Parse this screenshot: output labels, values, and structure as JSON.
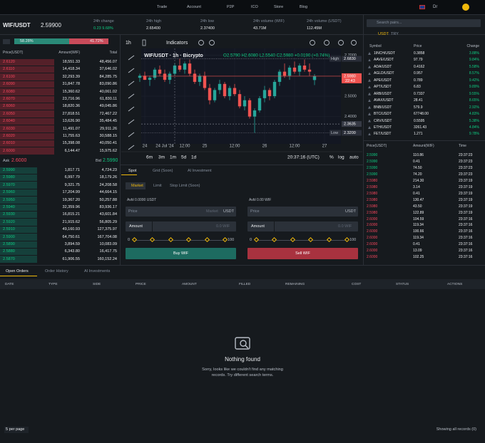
{
  "nav": {
    "items": [
      "Trade",
      "Account",
      "P2P",
      "ICO",
      "Store",
      "Blog"
    ],
    "user": "Dr"
  },
  "ticker": {
    "pair": "WIF/USDT",
    "price": "2.59900",
    "stats": [
      {
        "label": "24h change",
        "value": "0.23 9.68%"
      },
      {
        "label": "24h high",
        "value": "2.65400"
      },
      {
        "label": "24h low",
        "value": "2.37400"
      },
      {
        "label": "24h volume (WIF)",
        "value": "43.71M"
      },
      {
        "label": "24h volume (USDT)",
        "value": "112.45M"
      }
    ]
  },
  "orderbook": {
    "buy_ratio": {
      "value": 58.28,
      "label": "58.28%"
    },
    "sell_ratio": {
      "value": 41.72,
      "label": "41.72%"
    },
    "headers": [
      "Price(USDT)",
      "Amount(WIF)",
      "Total"
    ],
    "asks": [
      [
        "2.6120",
        "18,551.33",
        "48,456.07"
      ],
      [
        "2.6110",
        "14,418.34",
        "37,646.02"
      ],
      [
        "2.6100",
        "32,293.39",
        "84,285.75"
      ],
      [
        "2.6090",
        "31,847.78",
        "83,090.86"
      ],
      [
        "2.6080",
        "15,360.62",
        "40,061.02"
      ],
      [
        "2.6070",
        "23,716.96",
        "61,830.11"
      ],
      [
        "2.6060",
        "18,820.36",
        "49,045.86"
      ],
      [
        "2.6050",
        "27,818.51",
        "72,467.22"
      ],
      [
        "2.6040",
        "13,626.90",
        "35,484.45"
      ],
      [
        "2.6030",
        "11,491.07",
        "29,911.26"
      ],
      [
        "2.6020",
        "11,755.63",
        "30,588.15"
      ],
      [
        "2.6010",
        "15,398.08",
        "40,050.41"
      ],
      [
        "2.6000",
        "6,144.47",
        "15,975.62"
      ]
    ],
    "ask_label": "Ask",
    "ask": "2.6000",
    "bid_label": "Bid",
    "bid": "2.5990",
    "bids": [
      [
        "2.5990",
        "1,817.71",
        "4,724.23"
      ],
      [
        "2.5980",
        "6,997.79",
        "18,179.26"
      ],
      [
        "2.5970",
        "9,321.75",
        "24,208.58"
      ],
      [
        "2.5960",
        "17,204.99",
        "44,664.15"
      ],
      [
        "2.5950",
        "19,367.20",
        "50,257.88"
      ],
      [
        "2.5940",
        "32,359.96",
        "83,936.17"
      ],
      [
        "2.5930",
        "16,815.21",
        "43,601.84"
      ],
      [
        "2.5920",
        "21,915.62",
        "56,805.29"
      ],
      [
        "2.5910",
        "49,160.93",
        "127,375.97"
      ],
      [
        "2.5900",
        "64,750.61",
        "167,704.08"
      ],
      [
        "2.5890",
        "3,894.59",
        "10,083.09"
      ],
      [
        "2.5880",
        "6,343.80",
        "16,417.75"
      ],
      [
        "2.5870",
        "61,906.55",
        "160,152.24"
      ]
    ]
  },
  "chart_data": {
    "type": "candlestick",
    "interval": "1h",
    "indicators": "Indicators",
    "title": "WIF/USDT · 1h · Bicrypto",
    "legend": "O2.5790 H2.6080 L2.5540 C2.5980 +0.0190 (+0.74%)",
    "up_color": "#26a69a",
    "down_color": "#ef5350",
    "categories": [
      null,
      "24",
      null,
      null,
      null,
      "24 Jul '24",
      null,
      null,
      null,
      "12:00",
      null,
      null,
      null,
      "25",
      null,
      null,
      null,
      null,
      null,
      "12:00",
      null,
      null,
      null,
      null,
      null,
      "26",
      null,
      null,
      null,
      null,
      null,
      "12:00",
      null,
      null,
      null,
      null,
      null,
      "27"
    ],
    "candles": [
      [
        2.59,
        2.61,
        2.57,
        2.6
      ],
      [
        2.6,
        2.62,
        2.58,
        2.58
      ],
      [
        2.58,
        2.6,
        2.55,
        2.59
      ],
      [
        2.59,
        2.64,
        2.58,
        2.63
      ],
      [
        2.63,
        2.65,
        2.6,
        2.61
      ],
      [
        2.61,
        2.63,
        2.57,
        2.58
      ],
      [
        2.58,
        2.62,
        2.56,
        2.61
      ],
      [
        2.61,
        2.66,
        2.6,
        2.65
      ],
      [
        2.65,
        2.683,
        2.62,
        2.63
      ],
      [
        2.63,
        2.67,
        2.61,
        2.66
      ],
      [
        2.66,
        2.68,
        2.6,
        2.61
      ],
      [
        2.61,
        2.63,
        2.56,
        2.57
      ],
      [
        2.57,
        2.61,
        2.55,
        2.6
      ],
      [
        2.6,
        2.62,
        2.53,
        2.54
      ],
      [
        2.54,
        2.56,
        2.46,
        2.48
      ],
      [
        2.48,
        2.54,
        2.47,
        2.53
      ],
      [
        2.53,
        2.58,
        2.51,
        2.56
      ],
      [
        2.56,
        2.57,
        2.49,
        2.5
      ],
      [
        2.5,
        2.55,
        2.48,
        2.54
      ],
      [
        2.54,
        2.56,
        2.5,
        2.51
      ],
      [
        2.51,
        2.53,
        2.44,
        2.45
      ],
      [
        2.45,
        2.5,
        2.43,
        2.48
      ],
      [
        2.48,
        2.49,
        2.39,
        2.4
      ],
      [
        2.4,
        2.44,
        2.32,
        2.43
      ],
      [
        2.43,
        2.5,
        2.42,
        2.49
      ],
      [
        2.49,
        2.55,
        2.47,
        2.53
      ],
      [
        2.53,
        2.54,
        2.48,
        2.5
      ],
      [
        2.5,
        2.58,
        2.49,
        2.57
      ],
      [
        2.57,
        2.63,
        2.55,
        2.62
      ],
      [
        2.62,
        2.66,
        2.59,
        2.6
      ],
      [
        2.6,
        2.65,
        2.58,
        2.64
      ],
      [
        2.64,
        2.67,
        2.61,
        2.62
      ],
      [
        2.62,
        2.66,
        2.6,
        2.65
      ],
      [
        2.65,
        2.68,
        2.62,
        2.63
      ],
      [
        2.63,
        2.66,
        2.6,
        2.62
      ],
      [
        2.579,
        2.608,
        2.554,
        2.598
      ],
      null,
      null
    ],
    "ylim": [
      2.28,
      2.72
    ],
    "yticks": [
      {
        "value": 2.4,
        "label": "2.4000"
      },
      {
        "value": 2.5,
        "label": "2.5000"
      },
      {
        "value": 2.7,
        "label": "2.7000"
      }
    ],
    "markers": [
      {
        "name": "High",
        "value": 2.683,
        "label": "2.6830"
      },
      {
        "value": 2.598,
        "label": "2.5980",
        "time": "22:43"
      },
      {
        "value": 2.3635,
        "label": "2.3635"
      },
      {
        "name": "Low",
        "value": 2.32,
        "label": "2.3200"
      }
    ],
    "ranges": [
      "6m",
      "3m",
      "1m",
      "5d",
      "1d"
    ],
    "time": "20:37:16 (UTC)",
    "options": [
      "%",
      "log",
      "auto"
    ]
  },
  "trade_form": {
    "tabs": [
      "Spot",
      "Grid (Soon)",
      "AI Investment"
    ],
    "order_types": [
      "Market",
      "Limit",
      "Stop Limit (Soon)"
    ],
    "buy": {
      "available": "Avbl 0.0000 USDT",
      "price": "Price",
      "price_value": "Market",
      "price_unit": "USDT",
      "amount": "Amount",
      "amount_unit": "0.0 WIF",
      "min": "0",
      "max": "100",
      "button": "Buy WIF"
    },
    "sell": {
      "available": "Avbl 0.00 WIF",
      "price": "Price",
      "price_unit": "USDT",
      "amount": "Amount",
      "amount_unit": "0.0 WIF",
      "min": "0",
      "max": "100",
      "button": "Sell WIF"
    }
  },
  "markets": {
    "search": "Search pairs...",
    "tabs": [
      "USDT",
      "TRY"
    ],
    "headers": [
      "Symbol",
      "Price",
      "Change"
    ],
    "rows": [
      [
        "1INCH/USDT",
        "0.3858",
        "3.88%"
      ],
      [
        "AAVE/USDT",
        "97.79",
        "9.84%"
      ],
      [
        "ADA/USDT",
        "0.4162",
        "5.58%"
      ],
      [
        "AGLD/USDT",
        "0.957",
        "8.57%"
      ],
      [
        "APE/USDT",
        "0.789",
        "9.42%"
      ],
      [
        "APT/USDT",
        "6.83",
        "9.89%"
      ],
      [
        "ARB/USDT",
        "0.7337",
        "9.55%"
      ],
      [
        "AVAX/USDT",
        "28.41",
        "8.65%"
      ],
      [
        "BNB/USDT",
        "579.9",
        "2.92%"
      ],
      [
        "BTC/USDT",
        "67748.00",
        "4.83%"
      ],
      [
        "CRV/USDT",
        "0.5595",
        "5.38%"
      ],
      [
        "ETH/USDT",
        "3261.43",
        "4.84%"
      ],
      [
        "FET/USDT",
        "1.271",
        "9.78%"
      ]
    ]
  },
  "trades": {
    "headers": [
      "Price(USDT)",
      "Amount(WIF)",
      "Time"
    ],
    "rows": [
      {
        "cells": [
          "2.5990",
          "110.86",
          "23:37:23"
        ],
        "color": "#0ecb81"
      },
      {
        "cells": [
          "2.5990",
          "0.41",
          "23:37:23"
        ],
        "color": "#0ecb81"
      },
      {
        "cells": [
          "2.5990",
          "74.50",
          "23:37:23"
        ],
        "color": "#0ecb81"
      },
      {
        "cells": [
          "2.5990",
          "74.20",
          "23:37:23"
        ],
        "color": "#0ecb81"
      },
      {
        "cells": [
          "2.5980",
          "214.30",
          "23:37:19"
        ],
        "color": "#f6465d"
      },
      {
        "cells": [
          "2.5980",
          "3.14",
          "23:37:19"
        ],
        "color": "#f6465d"
      },
      {
        "cells": [
          "2.5980",
          "0.41",
          "23:37:19"
        ],
        "color": "#f6465d"
      },
      {
        "cells": [
          "2.5980",
          "130.47",
          "23:37:19"
        ],
        "color": "#f6465d"
      },
      {
        "cells": [
          "2.5980",
          "43.50",
          "23:37:19"
        ],
        "color": "#f6465d"
      },
      {
        "cells": [
          "2.5980",
          "122.89",
          "23:37:19"
        ],
        "color": "#f6465d"
      },
      {
        "cells": [
          "2.6000",
          "104.59",
          "23:37:16"
        ],
        "color": "#f6465d"
      },
      {
        "cells": [
          "2.6000",
          "119.34",
          "23:37:16"
        ],
        "color": "#f6465d"
      },
      {
        "cells": [
          "2.6000",
          "100.66",
          "23:37:16"
        ],
        "color": "#f6465d"
      },
      {
        "cells": [
          "2.6000",
          "119.34",
          "23:37:16"
        ],
        "color": "#f6465d"
      },
      {
        "cells": [
          "2.6000",
          "0.41",
          "23:37:16"
        ],
        "color": "#f6465d"
      },
      {
        "cells": [
          "2.6000",
          "13.09",
          "23:37:16"
        ],
        "color": "#f6465d"
      },
      {
        "cells": [
          "2.6000",
          "102.25",
          "23:37:16"
        ],
        "color": "#f6465d"
      }
    ]
  },
  "orders": {
    "tabs": [
      "Open Orders",
      "Order History",
      "AI Investments"
    ],
    "columns": [
      "DATE",
      "TYPE",
      "SIDE",
      "PRICE",
      "AMOUNT",
      "FILLED",
      "REMAINING",
      "COST",
      "STATUS",
      "ACTIONS"
    ],
    "empty_title": "Nothing found",
    "empty_text": "Sorry, looks like we couldn't find any matching records. Try different search terms.",
    "per_page": "5 per page",
    "summary": "Showing all records (0)"
  }
}
